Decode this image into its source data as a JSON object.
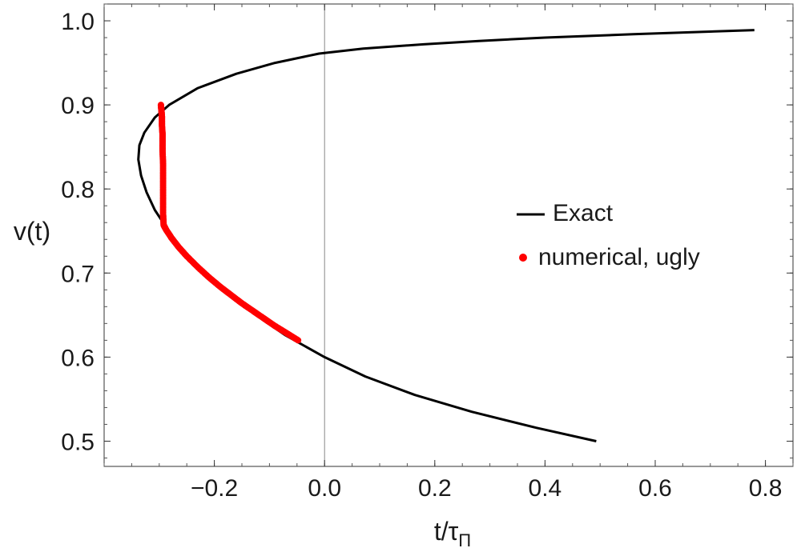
{
  "chart_data": {
    "type": "line",
    "title": "",
    "xlabel": "t/τ",
    "xlabel_subscript": "Π",
    "ylabel": "v(t)",
    "xlim": [
      -0.4,
      0.85
    ],
    "ylim": [
      0.47,
      1.02
    ],
    "x_ticks": [
      {
        "value": -0.2,
        "label": "−0.2"
      },
      {
        "value": 0.0,
        "label": "0.0"
      },
      {
        "value": 0.2,
        "label": "0.2"
      },
      {
        "value": 0.4,
        "label": "0.4"
      },
      {
        "value": 0.6,
        "label": "0.6"
      },
      {
        "value": 0.8,
        "label": "0.8"
      }
    ],
    "y_ticks": [
      {
        "value": 0.5,
        "label": "0.5"
      },
      {
        "value": 0.6,
        "label": "0.6"
      },
      {
        "value": 0.7,
        "label": "0.7"
      },
      {
        "value": 0.8,
        "label": "0.8"
      },
      {
        "value": 0.9,
        "label": "0.9"
      },
      {
        "value": 1.0,
        "label": "1.0"
      }
    ],
    "legend": {
      "position": "center-right",
      "entries": [
        "Exact",
        "numerical, ugly"
      ]
    },
    "series": [
      {
        "name": "Exact",
        "style": "line",
        "color": "#000000",
        "x": [
          0.493,
          0.384,
          0.267,
          0.164,
          0.074,
          0.0,
          -0.071,
          -0.129,
          -0.179,
          -0.223,
          -0.258,
          -0.285,
          -0.308,
          -0.323,
          -0.333,
          -0.338,
          -0.336,
          -0.327,
          -0.308,
          -0.282,
          -0.23,
          -0.16,
          -0.09,
          -0.01,
          0.07,
          0.18,
          0.28,
          0.4,
          0.56,
          0.78
        ],
        "y": [
          0.5,
          0.516,
          0.535,
          0.555,
          0.577,
          0.6,
          0.626,
          0.652,
          0.678,
          0.703,
          0.728,
          0.752,
          0.775,
          0.796,
          0.816,
          0.835,
          0.852,
          0.867,
          0.885,
          0.9,
          0.92,
          0.937,
          0.95,
          0.961,
          0.967,
          0.972,
          0.976,
          0.98,
          0.984,
          0.989
        ]
      },
      {
        "name": "numerical, ugly",
        "style": "points",
        "color": "#ff0000",
        "x": [
          -0.048,
          -0.07,
          -0.09,
          -0.11,
          -0.13,
          -0.15,
          -0.17,
          -0.19,
          -0.21,
          -0.23,
          -0.25,
          -0.265,
          -0.278,
          -0.288,
          -0.292,
          -0.293,
          -0.293,
          -0.293,
          -0.293,
          -0.294,
          -0.294,
          -0.294,
          -0.295,
          -0.295,
          -0.296,
          -0.297
        ],
        "y": [
          0.62,
          0.629,
          0.637,
          0.646,
          0.655,
          0.664,
          0.674,
          0.684,
          0.695,
          0.707,
          0.72,
          0.731,
          0.742,
          0.752,
          0.757,
          0.77,
          0.79,
          0.81,
          0.83,
          0.845,
          0.855,
          0.865,
          0.875,
          0.885,
          0.893,
          0.9
        ]
      }
    ]
  }
}
